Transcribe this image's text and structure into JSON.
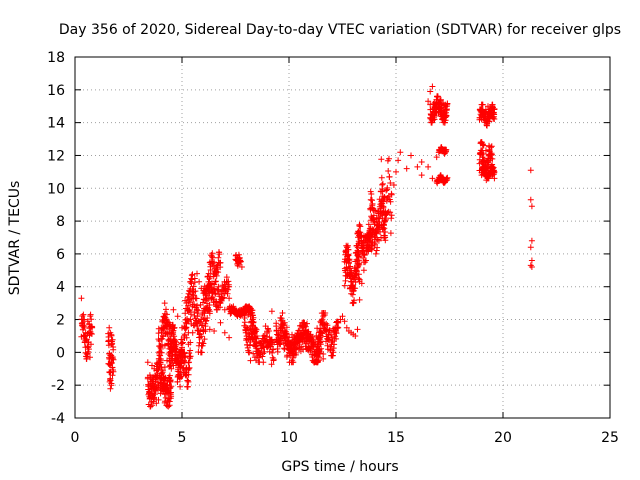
{
  "chart_data": {
    "type": "scatter",
    "title": "Day 356 of 2020, Sidereal Day-to-day VTEC variation (SDTVAR) for receiver glps",
    "xlabel": "GPS time / hours",
    "ylabel": "SDTVAR / TECUs",
    "xlim": [
      0,
      25
    ],
    "ylim": [
      -4,
      18
    ],
    "xticks": [
      0,
      5,
      10,
      15,
      20,
      25
    ],
    "yticks": [
      -4,
      -2,
      0,
      2,
      4,
      6,
      8,
      10,
      12,
      14,
      16,
      18
    ],
    "grid": true,
    "marker": "+",
    "color": "#ff0000",
    "series": [
      {
        "name": "SDTVAR",
        "x": [
          0.3,
          0.35,
          0.4,
          0.45,
          0.5,
          0.55,
          0.6,
          0.65,
          0.7,
          0.75,
          0.8,
          1.6,
          1.65,
          1.7,
          1.75,
          1.6,
          1.65,
          1.7,
          1.75,
          1.65,
          1.7,
          3.4,
          3.5,
          3.6,
          3.7,
          3.8,
          3.9,
          4.0,
          4.1,
          4.2,
          4.3,
          4.4,
          4.5,
          4.6,
          4.7,
          4.8,
          4.9,
          5.0,
          3.6,
          3.7,
          3.8,
          3.9,
          4.0,
          4.1,
          4.2,
          4.3,
          4.4,
          4.5,
          4.6,
          4.7,
          4.8,
          3.9,
          4.0,
          4.2,
          4.4,
          4.6,
          4.8,
          5.0,
          5.2,
          5.3,
          5.0,
          5.1,
          5.2,
          5.3,
          5.4,
          5.5,
          5.6,
          5.7,
          5.8,
          5.9,
          6.0,
          6.1,
          6.2,
          6.3,
          6.4,
          6.5,
          6.6,
          6.7,
          6.8,
          7.0,
          7.2,
          7.4,
          5.3,
          5.5,
          5.7,
          6.0,
          6.3,
          6.6,
          7.0,
          7.3,
          7.5,
          7.6,
          7.7,
          7.8,
          7.9,
          8.0,
          8.1,
          8.2,
          8.3,
          8.4,
          8.5,
          5.5,
          5.7,
          5.9,
          6.1,
          6.3,
          6.5,
          6.8,
          7.0,
          7.2,
          8.2,
          8.4,
          8.6,
          8.8,
          9.0,
          9.2,
          8.6,
          8.8,
          9.0,
          9.2,
          9.4,
          9.6,
          9.8,
          10.0,
          9.6,
          9.8,
          10.0,
          10.2,
          10.4,
          10.6,
          10.8,
          11.0,
          11.2,
          11.4,
          11.6,
          11.8,
          12.0,
          12.2,
          10.6,
          10.8,
          11.0,
          11.2,
          11.4,
          11.6,
          12.3,
          12.4,
          12.5,
          12.6,
          12.7,
          12.8,
          12.9,
          13.0,
          13.1,
          13.2,
          13.3,
          13.4,
          13.5,
          13.6,
          13.7,
          13.8,
          13.9,
          14.0,
          14.1,
          14.2,
          14.3,
          14.4,
          14.5,
          13.2,
          13.4,
          13.6,
          13.8,
          14.0,
          14.2,
          14.4,
          14.6,
          14.8,
          14.9,
          15.0,
          15.1,
          15.2,
          15.5,
          15.7,
          16.0,
          16.2,
          16.5,
          16.6,
          16.7,
          16.8,
          16.9,
          17.0,
          17.1,
          17.2,
          17.3,
          16.2,
          16.5,
          16.7,
          16.9,
          17.0,
          17.1,
          17.2,
          16.6,
          16.7,
          16.8,
          16.9,
          17.0,
          17.1,
          17.2,
          17.3,
          19.0,
          19.1,
          19.2,
          19.3,
          19.4,
          19.5,
          19.6,
          19.0,
          19.1,
          19.2,
          19.3,
          19.4,
          19.5,
          19.6,
          19.0,
          19.1,
          19.2,
          19.3,
          19.4,
          21.3,
          21.3,
          21.35,
          21.35,
          21.3,
          21.35,
          21.3,
          21.35
        ],
        "y": [
          3.3,
          1.8,
          2.0,
          1.6,
          1.2,
          0.8,
          1.9,
          0.2,
          -0.3,
          0.5,
          1.5,
          1.5,
          1.2,
          0.5,
          -0.3,
          -1.2,
          -1.6,
          -2.0,
          -1.4,
          -0.2,
          -1.9,
          -0.6,
          -1.4,
          -2.2,
          -2.8,
          -3.1,
          -2.9,
          -2.5,
          -2.2,
          -2.0,
          -1.8,
          -1.6,
          -1.0,
          -0.8,
          -0.5,
          -0.3,
          0.0,
          0.3,
          -0.8,
          -1.0,
          -1.5,
          -2.0,
          -1.6,
          -1.2,
          -0.9,
          -0.5,
          -0.1,
          0.2,
          0.5,
          -0.2,
          -1.5,
          -1.0,
          -0.6,
          0.4,
          1.8,
          2.6,
          2.2,
          1.5,
          -1.0,
          -1.8,
          0.2,
          1.0,
          1.5,
          1.2,
          2.0,
          3.5,
          4.5,
          4.8,
          4.3,
          3.9,
          3.6,
          3.5,
          4.6,
          4.0,
          4.2,
          5.5,
          5.2,
          4.0,
          3.0,
          3.6,
          3.3,
          2.8,
          0.5,
          1.2,
          1.6,
          2.0,
          2.5,
          2.8,
          2.6,
          2.4,
          2.5,
          5.8,
          5.5,
          5.2,
          2.4,
          2.5,
          2.3,
          2.2,
          2.0,
          1.5,
          1.0,
          2.9,
          2.6,
          2.0,
          1.6,
          1.4,
          1.3,
          1.8,
          1.2,
          0.9,
          -0.5,
          -0.3,
          0.0,
          -0.6,
          0.3,
          0.5,
          0.6,
          1.0,
          0.4,
          2.5,
          1.6,
          2.1,
          1.8,
          0.9,
          0.5,
          0.2,
          0.0,
          0.5,
          0.6,
          0.8,
          0.2,
          0.1,
          -0.2,
          -0.3,
          -0.1,
          0.4,
          0.9,
          1.2,
          1.6,
          1.3,
          0.9,
          0.5,
          0.1,
          -0.4,
          1.5,
          2.0,
          2.2,
          1.9,
          1.5,
          1.3,
          1.2,
          1.1,
          1.0,
          1.4,
          3.2,
          4.2,
          5.0,
          5.6,
          6.2,
          6.8,
          7.3,
          7.8,
          8.2,
          7.5,
          7.0,
          7.8,
          8.4,
          6.2,
          6.5,
          7.0,
          6.8,
          7.1,
          6.8,
          7.5,
          8.5,
          9.6,
          10.2,
          11.0,
          11.7,
          12.2,
          11.2,
          12.0,
          11.3,
          11.6,
          15.3,
          15.1,
          14.5,
          14.2,
          14.6,
          14.8,
          15.4,
          15.2,
          15.1,
          10.8,
          11.3,
          10.6,
          11.9,
          10.5,
          10.6,
          10.5,
          15.9,
          16.2,
          14.4,
          14.6,
          14.7,
          14.4,
          12.3,
          12.2,
          14.2,
          14.5,
          14.8,
          15.0,
          14.9,
          15.0,
          14.8,
          12.8,
          12.6,
          12.3,
          11.8,
          11.3,
          10.8,
          10.6,
          10.8,
          11.0,
          11.1,
          10.9,
          11.2,
          11.1,
          9.3,
          8.9,
          6.8,
          6.4,
          5.6,
          5.3,
          5.2
        ]
      }
    ],
    "dense_segments": [
      {
        "x0": 0.3,
        "x1": 0.8,
        "yMin": -0.4,
        "yMax": 2.3,
        "n": 50
      },
      {
        "x0": 1.55,
        "x1": 1.8,
        "yMin": -2.3,
        "yMax": 1.6,
        "n": 40
      },
      {
        "x0": 3.4,
        "x1": 4.5,
        "yMin": -3.3,
        "yMax": -0.4,
        "n": 150
      },
      {
        "x0": 4.4,
        "x1": 5.0,
        "yMin": -1.8,
        "yMax": 1.5,
        "n": 90
      },
      {
        "x0": 3.9,
        "x1": 4.6,
        "yMin": -0.2,
        "yMax": 3.0,
        "n": 90
      },
      {
        "x0": 4.9,
        "x1": 5.4,
        "yMin": -2.1,
        "yMax": 0.6,
        "n": 50
      },
      {
        "x0": 5.1,
        "x1": 6.3,
        "yMin": 0.0,
        "yMax": 4.8,
        "n": 140
      },
      {
        "x0": 6.0,
        "x1": 7.2,
        "yMin": 2.6,
        "yMax": 4.6,
        "n": 80
      },
      {
        "x0": 6.3,
        "x1": 6.8,
        "yMin": 4.0,
        "yMax": 6.1,
        "n": 40
      },
      {
        "x0": 7.2,
        "x1": 8.3,
        "yMin": 2.2,
        "yMax": 2.8,
        "n": 90
      },
      {
        "x0": 7.5,
        "x1": 7.75,
        "yMin": 5.2,
        "yMax": 6.0,
        "n": 20
      },
      {
        "x0": 7.9,
        "x1": 8.5,
        "yMin": 0.0,
        "yMax": 2.4,
        "n": 60
      },
      {
        "x0": 8.3,
        "x1": 9.3,
        "yMin": -0.8,
        "yMax": 1.6,
        "n": 80
      },
      {
        "x0": 9.4,
        "x1": 9.9,
        "yMin": 0.0,
        "yMax": 2.4,
        "n": 60
      },
      {
        "x0": 9.9,
        "x1": 11.5,
        "yMin": -0.6,
        "yMax": 1.8,
        "n": 220
      },
      {
        "x0": 11.3,
        "x1": 12.3,
        "yMin": -0.2,
        "yMax": 2.4,
        "n": 90
      },
      {
        "x0": 12.6,
        "x1": 13.3,
        "yMin": 3.0,
        "yMax": 6.5,
        "n": 120
      },
      {
        "x0": 13.2,
        "x1": 13.9,
        "yMin": 5.5,
        "yMax": 7.8,
        "n": 90
      },
      {
        "x0": 13.8,
        "x1": 14.5,
        "yMin": 6.0,
        "yMax": 9.8,
        "n": 90
      },
      {
        "x0": 14.3,
        "x1": 14.8,
        "yMin": 7.0,
        "yMax": 11.8,
        "n": 40
      },
      {
        "x0": 16.6,
        "x1": 17.4,
        "yMin": 14.0,
        "yMax": 15.6,
        "n": 90
      },
      {
        "x0": 16.9,
        "x1": 17.4,
        "yMin": 10.3,
        "yMax": 10.8,
        "n": 40
      },
      {
        "x0": 17.0,
        "x1": 17.35,
        "yMin": 12.1,
        "yMax": 12.5,
        "n": 30
      },
      {
        "x0": 18.9,
        "x1": 19.6,
        "yMin": 13.8,
        "yMax": 15.1,
        "n": 90
      },
      {
        "x0": 18.9,
        "x1": 19.5,
        "yMin": 10.5,
        "yMax": 12.8,
        "n": 80
      },
      {
        "x0": 19.0,
        "x1": 19.6,
        "yMin": 10.6,
        "yMax": 11.3,
        "n": 60
      }
    ]
  }
}
